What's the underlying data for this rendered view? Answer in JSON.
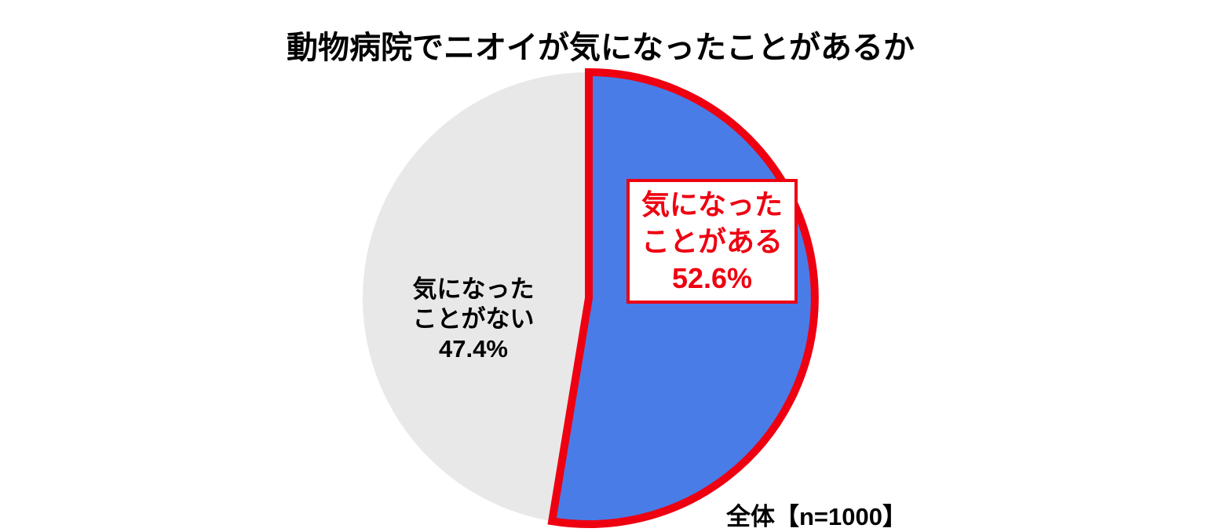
{
  "chart_data": {
    "type": "pie",
    "title": "動物病院でニオイが気になったことがあるか",
    "note": "全体【n=1000】",
    "start_angle_deg": 0,
    "direction": "clockwise",
    "slices": [
      {
        "label": "気になったことがある",
        "label_lines": [
          "気になった",
          "ことがある"
        ],
        "value": 52.6,
        "pct_text": "52.6%",
        "color": "#4A7CE8",
        "emphasized": true
      },
      {
        "label": "気になったことがない",
        "label_lines": [
          "気になった",
          "ことがない"
        ],
        "value": 47.4,
        "pct_text": "47.4%",
        "color": "#E8E8E8",
        "emphasized": false
      }
    ],
    "emphasis_color": "#EE0011",
    "callout": {
      "background": "#FFFFFF",
      "border_color": "#EE0011",
      "text_color": "#EE0011"
    },
    "legend_position": "none",
    "grid": false
  },
  "colors": {
    "page_background": "#FFFFFF",
    "title_text": "#000000",
    "plain_label_text": "#000000"
  }
}
